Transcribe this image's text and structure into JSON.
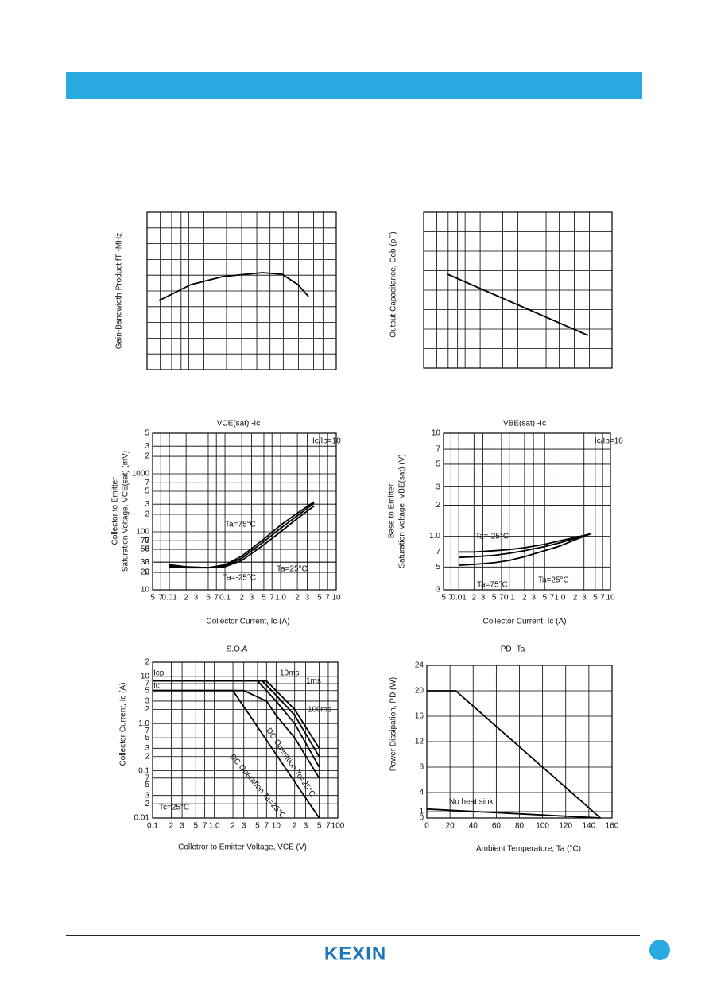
{
  "footer": {
    "logo": "KEXIN"
  },
  "chart_data": [
    {
      "type": "line",
      "ylabel": "Gain-Bandwidth Product,fT -MHz",
      "xlim": [
        0,
        10
      ],
      "ylim": [
        0,
        10
      ],
      "grid": true,
      "series": [
        {
          "color": "#000000",
          "x": [
            0.63,
            2.31,
            3.99,
            6.09,
            7.14,
            7.98,
            8.53
          ],
          "values": [
            4.39,
            5.4,
            5.91,
            6.16,
            6.06,
            5.4,
            4.65
          ]
        }
      ]
    },
    {
      "type": "line",
      "ylabel": "Output Capacitance, Cob (pF)",
      "xlim": [
        0,
        10
      ],
      "ylim": [
        0,
        10
      ],
      "grid": true,
      "series": [
        {
          "color": "#000000",
          "x": [
            1.27,
            8.73
          ],
          "values": [
            6.02,
            2.09
          ]
        }
      ]
    },
    {
      "type": "line",
      "title": "VCE(sat) -Ic",
      "xlabel": "Collector Current, Ic (A)",
      "ylabel": [
        "Collector to Emitter",
        "Saturation Voltage, VCE(sat) (mV)"
      ],
      "annotations": [
        "Ic/Ib=10"
      ],
      "xlog": true,
      "ylog": true,
      "grid": true,
      "xlim": [
        0.005,
        10
      ],
      "ylim": [
        10,
        5000
      ],
      "xticks": [
        {
          "value": 0.005,
          "label": "5"
        },
        {
          "value": 0.007,
          "label": "7"
        },
        0.01,
        {
          "value": 0.02,
          "label": "2"
        },
        {
          "value": 0.03,
          "label": "3"
        },
        {
          "value": 0.05,
          "label": "5"
        },
        {
          "value": 0.07,
          "label": "7"
        },
        0.1,
        {
          "value": 0.2,
          "label": "2"
        },
        {
          "value": 0.3,
          "label": "3"
        },
        {
          "value": 0.5,
          "label": "5"
        },
        {
          "value": 0.7,
          "label": "7"
        },
        {
          "value": 1,
          "label": "1.0"
        },
        2,
        3,
        5,
        7,
        10
      ],
      "yticks": [
        10,
        20,
        30,
        50,
        70,
        100,
        {
          "value": 20,
          "label": "2"
        },
        {
          "value": 30,
          "label": "3"
        },
        {
          "value": 50,
          "label": "5"
        },
        {
          "value": 70,
          "label": "7"
        },
        1000,
        {
          "value": 200,
          "label": "2"
        },
        {
          "value": 300,
          "label": "3"
        },
        {
          "value": 500,
          "label": "5"
        },
        {
          "value": 700,
          "label": "7"
        },
        {
          "value": 2000,
          "label": "2"
        },
        {
          "value": 3000,
          "label": "3"
        },
        {
          "value": 5000,
          "label": "5"
        }
      ],
      "series": [
        {
          "name": "Ta=75°C",
          "color": "#000000",
          "x": [
            0.01,
            0.02,
            0.05,
            0.1,
            0.2,
            0.5,
            1,
            2,
            4
          ],
          "values": [
            27,
            25,
            24,
            27,
            38,
            75,
            130,
            210,
            330
          ]
        },
        {
          "name": "Ta=25°C",
          "color": "#000000",
          "x": [
            0.01,
            0.02,
            0.05,
            0.1,
            0.2,
            0.5,
            1,
            2,
            4
          ],
          "values": [
            26,
            24.5,
            24,
            26,
            35,
            68,
            115,
            190,
            310
          ]
        },
        {
          "name": "Ta=-25°C",
          "color": "#000000",
          "x": [
            0.01,
            0.02,
            0.05,
            0.1,
            0.2,
            0.5,
            1,
            2,
            4
          ],
          "values": [
            25,
            24,
            24,
            25,
            32,
            60,
            100,
            170,
            280
          ]
        }
      ]
    },
    {
      "type": "line",
      "title": "VBE(sat) -Ic",
      "xlabel": "Collector Current, Ic (A)",
      "ylabel": [
        "Base to Emitter",
        "Saturation Voltage, VBE(sat) (V)"
      ],
      "annotations": [
        "Ic/Ib=10"
      ],
      "xlog": true,
      "ylog": true,
      "grid": true,
      "xlim": [
        0.005,
        10
      ],
      "ylim": [
        0.3,
        10
      ],
      "xticks": [
        {
          "value": 0.005,
          "label": "5"
        },
        {
          "value": 0.007,
          "label": "7"
        },
        0.01,
        {
          "value": 0.02,
          "label": "2"
        },
        {
          "value": 0.03,
          "label": "3"
        },
        {
          "value": 0.05,
          "label": "5"
        },
        {
          "value": 0.07,
          "label": "7"
        },
        0.1,
        {
          "value": 0.2,
          "label": "2"
        },
        {
          "value": 0.3,
          "label": "3"
        },
        {
          "value": 0.5,
          "label": "5"
        },
        {
          "value": 0.7,
          "label": "7"
        },
        {
          "value": 1,
          "label": "1.0"
        },
        2,
        3,
        5,
        7,
        10
      ],
      "yticks": [
        {
          "value": 0.3,
          "label": "3"
        },
        {
          "value": 0.5,
          "label": "5"
        },
        {
          "value": 0.7,
          "label": "7"
        },
        {
          "value": 1,
          "label": "1.0"
        },
        2,
        3,
        5,
        7,
        10
      ],
      "series": [
        {
          "name": "Ta=-25°C",
          "color": "#000000",
          "x": [
            0.01,
            0.02,
            0.05,
            0.1,
            0.2,
            0.5,
            1,
            2,
            4
          ],
          "values": [
            0.7,
            0.7,
            0.72,
            0.74,
            0.77,
            0.83,
            0.9,
            0.97,
            1.05
          ]
        },
        {
          "name": "Ta=25°C",
          "color": "#000000",
          "x": [
            0.01,
            0.02,
            0.05,
            0.1,
            0.2,
            0.5,
            1,
            2,
            4
          ],
          "values": [
            0.62,
            0.63,
            0.65,
            0.68,
            0.72,
            0.79,
            0.86,
            0.95,
            1.05
          ]
        },
        {
          "name": "Ta=75°C",
          "color": "#000000",
          "x": [
            0.01,
            0.02,
            0.05,
            0.1,
            0.2,
            0.5,
            1,
            2,
            4
          ],
          "values": [
            0.52,
            0.53,
            0.55,
            0.58,
            0.63,
            0.72,
            0.8,
            0.92,
            1.05
          ]
        }
      ]
    },
    {
      "type": "line",
      "title": "S.O.A",
      "xlabel": "Colletror to Emitter Voltage, VCE (V)",
      "ylabel": "Collector Current, Ic (A)",
      "annotations": [
        "Icp",
        "Ic",
        "Tc=25°C"
      ],
      "xlog": true,
      "ylog": true,
      "grid": true,
      "xlim": [
        0.1,
        100
      ],
      "ylim": [
        0.01,
        20
      ],
      "xticks": [
        0.1,
        {
          "value": 0.2,
          "label": "2"
        },
        {
          "value": 0.3,
          "label": "3"
        },
        {
          "value": 0.5,
          "label": "5"
        },
        {
          "value": 0.7,
          "label": "7"
        },
        {
          "value": 1,
          "label": "1.0"
        },
        2,
        3,
        5,
        7,
        10,
        {
          "value": 20,
          "label": "2"
        },
        {
          "value": 30,
          "label": "3"
        },
        {
          "value": 50,
          "label": "5"
        },
        {
          "value": 70,
          "label": "7"
        },
        100
      ],
      "yticks": [
        0.01,
        {
          "value": 0.02,
          "label": "2"
        },
        {
          "value": 0.03,
          "label": "3"
        },
        {
          "value": 0.05,
          "label": "5"
        },
        {
          "value": 0.07,
          "label": "7"
        },
        0.1,
        {
          "value": 0.2,
          "label": "2"
        },
        {
          "value": 0.3,
          "label": "3"
        },
        {
          "value": 0.5,
          "label": "5"
        },
        {
          "value": 0.7,
          "label": "7"
        },
        {
          "value": 1,
          "label": "1.0"
        },
        2,
        3,
        5,
        7,
        10,
        {
          "value": 20,
          "label": "2"
        }
      ],
      "series": [
        {
          "name": "10ms",
          "color": "#000000",
          "x": [
            0.1,
            7,
            10,
            20,
            50
          ],
          "values": [
            8,
            8,
            5,
            2,
            0.3
          ]
        },
        {
          "name": "1ms",
          "color": "#000000",
          "x": [
            0.1,
            6,
            10,
            20,
            50
          ],
          "values": [
            8,
            8,
            4,
            1.5,
            0.2
          ]
        },
        {
          "name": "100ms",
          "color": "#000000",
          "x": [
            0.1,
            5,
            10,
            20,
            50
          ],
          "values": [
            8,
            8,
            3,
            1,
            0.12
          ]
        },
        {
          "name": "DC Operation Tc=25°C",
          "color": "#000000",
          "x": [
            0.1,
            3,
            7,
            10,
            20,
            50
          ],
          "values": [
            5,
            5,
            3,
            1.5,
            0.5,
            0.07
          ]
        },
        {
          "name": "DC Operation Ta=25°C",
          "color": "#000000",
          "x": [
            0.1,
            2,
            50
          ],
          "values": [
            5,
            5,
            0.01
          ]
        }
      ]
    },
    {
      "type": "line",
      "title": "PD -Ta",
      "xlabel": "Ambient Temperature, Ta (°C)",
      "ylabel": "Power Dissipation, PD (W)",
      "grid": true,
      "xlim": [
        0,
        160
      ],
      "ylim": [
        0,
        24
      ],
      "xticks": [
        0,
        20,
        40,
        60,
        80,
        100,
        120,
        140,
        160
      ],
      "yticks": [
        0,
        1,
        4,
        8,
        12,
        16,
        20,
        24
      ],
      "series": [
        {
          "color": "#000000",
          "x": [
            0,
            25,
            150
          ],
          "values": [
            20,
            20,
            0
          ]
        },
        {
          "name": "No heat sink",
          "color": "#000000",
          "x": [
            0,
            150
          ],
          "values": [
            1.4,
            0
          ]
        }
      ]
    }
  ]
}
